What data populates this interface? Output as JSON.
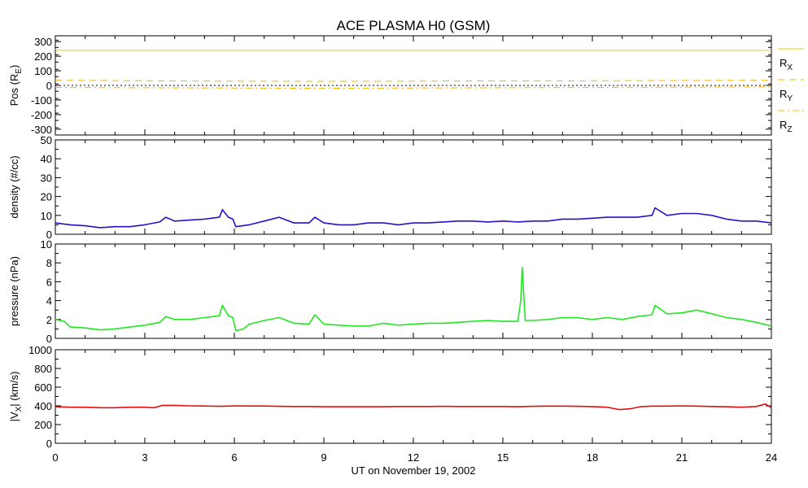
{
  "chart_data": [
    {
      "type": "line",
      "panel": "position",
      "title": "ACE PLASMA H0 (GSM)",
      "ylabel": "Pos (R",
      "ylabel_sub": "E",
      "ylabel_end": ")",
      "ylim": [
        -340,
        340
      ],
      "yticks": [
        300,
        200,
        100,
        0,
        -100,
        -200,
        -300
      ],
      "zero_line": true,
      "series": [
        {
          "name": "R",
          "name_sub": "X",
          "color": "#e6d200",
          "dash": "solid",
          "x": [
            0,
            24
          ],
          "y": [
            240,
            240
          ]
        },
        {
          "name": "R",
          "name_sub": "Y",
          "color": "#f5b400",
          "dash": "dashed",
          "x": [
            0,
            3,
            6,
            9,
            12,
            15,
            18,
            21,
            24
          ],
          "y": [
            35,
            32,
            29,
            28,
            29,
            31,
            32,
            34,
            35
          ]
        },
        {
          "name": "R",
          "name_sub": "Z",
          "color": "#f5b400",
          "dash": "dashdot",
          "x": [
            0,
            3,
            6,
            9,
            12,
            15,
            18,
            21,
            24
          ],
          "y": [
            -14,
            -16,
            -18,
            -20,
            -18,
            -16,
            -14,
            -12,
            -10
          ]
        }
      ]
    },
    {
      "type": "line",
      "panel": "density",
      "ylabel": "density (#/cc)",
      "ylim": [
        0,
        50
      ],
      "yticks": [
        50,
        40,
        30,
        20,
        10,
        0
      ],
      "color": "#2a10c8",
      "series": [
        {
          "x": [
            0,
            0.5,
            1,
            1.5,
            2,
            2.5,
            3,
            3.5,
            3.7,
            4,
            4.5,
            5,
            5.5,
            5.6,
            5.8,
            5.95,
            6.05,
            6.5,
            7,
            7.5,
            8,
            8.5,
            8.7,
            9,
            9.5,
            10,
            10.5,
            11,
            11.5,
            12,
            12.5,
            13,
            13.5,
            14,
            14.5,
            15,
            15.5,
            16,
            16.5,
            17,
            17.5,
            18,
            18.5,
            19,
            19.5,
            20,
            20.1,
            20.5,
            21,
            21.5,
            22,
            22.5,
            23,
            23.5,
            24
          ],
          "y": [
            6,
            5,
            4.5,
            3.5,
            4,
            4,
            5,
            6.5,
            9,
            7,
            7.5,
            8,
            9,
            13,
            9,
            8,
            4,
            5,
            7,
            9,
            6,
            6,
            9,
            6,
            5,
            5,
            6,
            6,
            5,
            6,
            6,
            6.5,
            7,
            7,
            6.5,
            7,
            6.5,
            7,
            7,
            8,
            8,
            8.5,
            9,
            9,
            9,
            10,
            14,
            10,
            11,
            11,
            10,
            8,
            7,
            7,
            6
          ]
        }
      ]
    },
    {
      "type": "line",
      "panel": "pressure",
      "ylabel": "pressure (nPa)",
      "ylim": [
        0,
        10
      ],
      "yticks": [
        10,
        8,
        6,
        4,
        2,
        0
      ],
      "color": "#22e622",
      "series": [
        {
          "x": [
            0,
            0.3,
            0.5,
            1,
            1.5,
            2,
            2.5,
            3,
            3.5,
            3.7,
            4,
            4.5,
            5,
            5.5,
            5.6,
            5.8,
            5.95,
            6.05,
            6.3,
            6.5,
            7,
            7.5,
            8,
            8.5,
            8.7,
            9,
            9.5,
            10,
            10.5,
            11,
            11.5,
            12,
            12.5,
            13,
            13.5,
            14,
            14.5,
            15,
            15.5,
            15.6,
            15.65,
            15.75,
            16,
            16.5,
            17,
            17.5,
            18,
            18.5,
            19,
            19.5,
            20,
            20.1,
            20.5,
            21,
            21.5,
            22,
            22.5,
            23,
            23.5,
            24
          ],
          "y": [
            2,
            1.8,
            1.2,
            1.1,
            0.9,
            1,
            1.2,
            1.4,
            1.7,
            2.3,
            2,
            2,
            2.2,
            2.4,
            3.5,
            2.4,
            2.2,
            0.8,
            1,
            1.5,
            1.9,
            2.2,
            1.6,
            1.5,
            2.5,
            1.5,
            1.4,
            1.3,
            1.3,
            1.6,
            1.4,
            1.5,
            1.6,
            1.6,
            1.7,
            1.8,
            1.9,
            1.8,
            1.8,
            4,
            7.5,
            1.9,
            1.9,
            2,
            2.2,
            2.2,
            2,
            2.2,
            2,
            2.3,
            2.5,
            3.5,
            2.6,
            2.7,
            3,
            2.6,
            2.2,
            2,
            1.7,
            1.3
          ]
        }
      ]
    },
    {
      "type": "line",
      "panel": "velocity",
      "ylabel": "|V",
      "ylabel_sub": "X",
      "ylabel_end": "| (km/s)",
      "ylim": [
        0,
        1000
      ],
      "yticks": [
        1000,
        800,
        600,
        400,
        200,
        0
      ],
      "color": "#e01010",
      "series": [
        {
          "x": [
            0,
            0.5,
            1,
            1.5,
            2,
            2.5,
            3,
            3.3,
            3.6,
            4,
            4.5,
            5,
            5.5,
            6,
            6.5,
            7,
            7.5,
            8,
            8.5,
            9,
            9.5,
            10,
            10.5,
            11,
            11.5,
            12,
            12.5,
            13,
            13.5,
            14,
            14.5,
            15,
            15.5,
            16,
            16.5,
            17,
            17.5,
            18,
            18.5,
            18.9,
            19.3,
            19.6,
            20,
            20.5,
            21,
            21.5,
            22,
            22.5,
            23,
            23.5,
            23.8,
            24
          ],
          "y": [
            390,
            385,
            385,
            380,
            380,
            385,
            385,
            380,
            405,
            405,
            400,
            398,
            395,
            400,
            398,
            398,
            395,
            393,
            393,
            390,
            390,
            390,
            390,
            390,
            393,
            393,
            393,
            395,
            393,
            393,
            393,
            393,
            390,
            395,
            397,
            397,
            395,
            392,
            385,
            360,
            370,
            390,
            397,
            397,
            400,
            397,
            393,
            390,
            385,
            393,
            420,
            380
          ]
        }
      ]
    }
  ],
  "xaxis": {
    "xlim": [
      0,
      24
    ],
    "ticks": [
      0,
      3,
      6,
      9,
      12,
      15,
      18,
      21,
      24
    ],
    "tick_labels": [
      "0",
      "3",
      "6",
      "9",
      "12",
      "15",
      "18",
      "21",
      "24"
    ],
    "label": "UT on November 19, 2002"
  }
}
